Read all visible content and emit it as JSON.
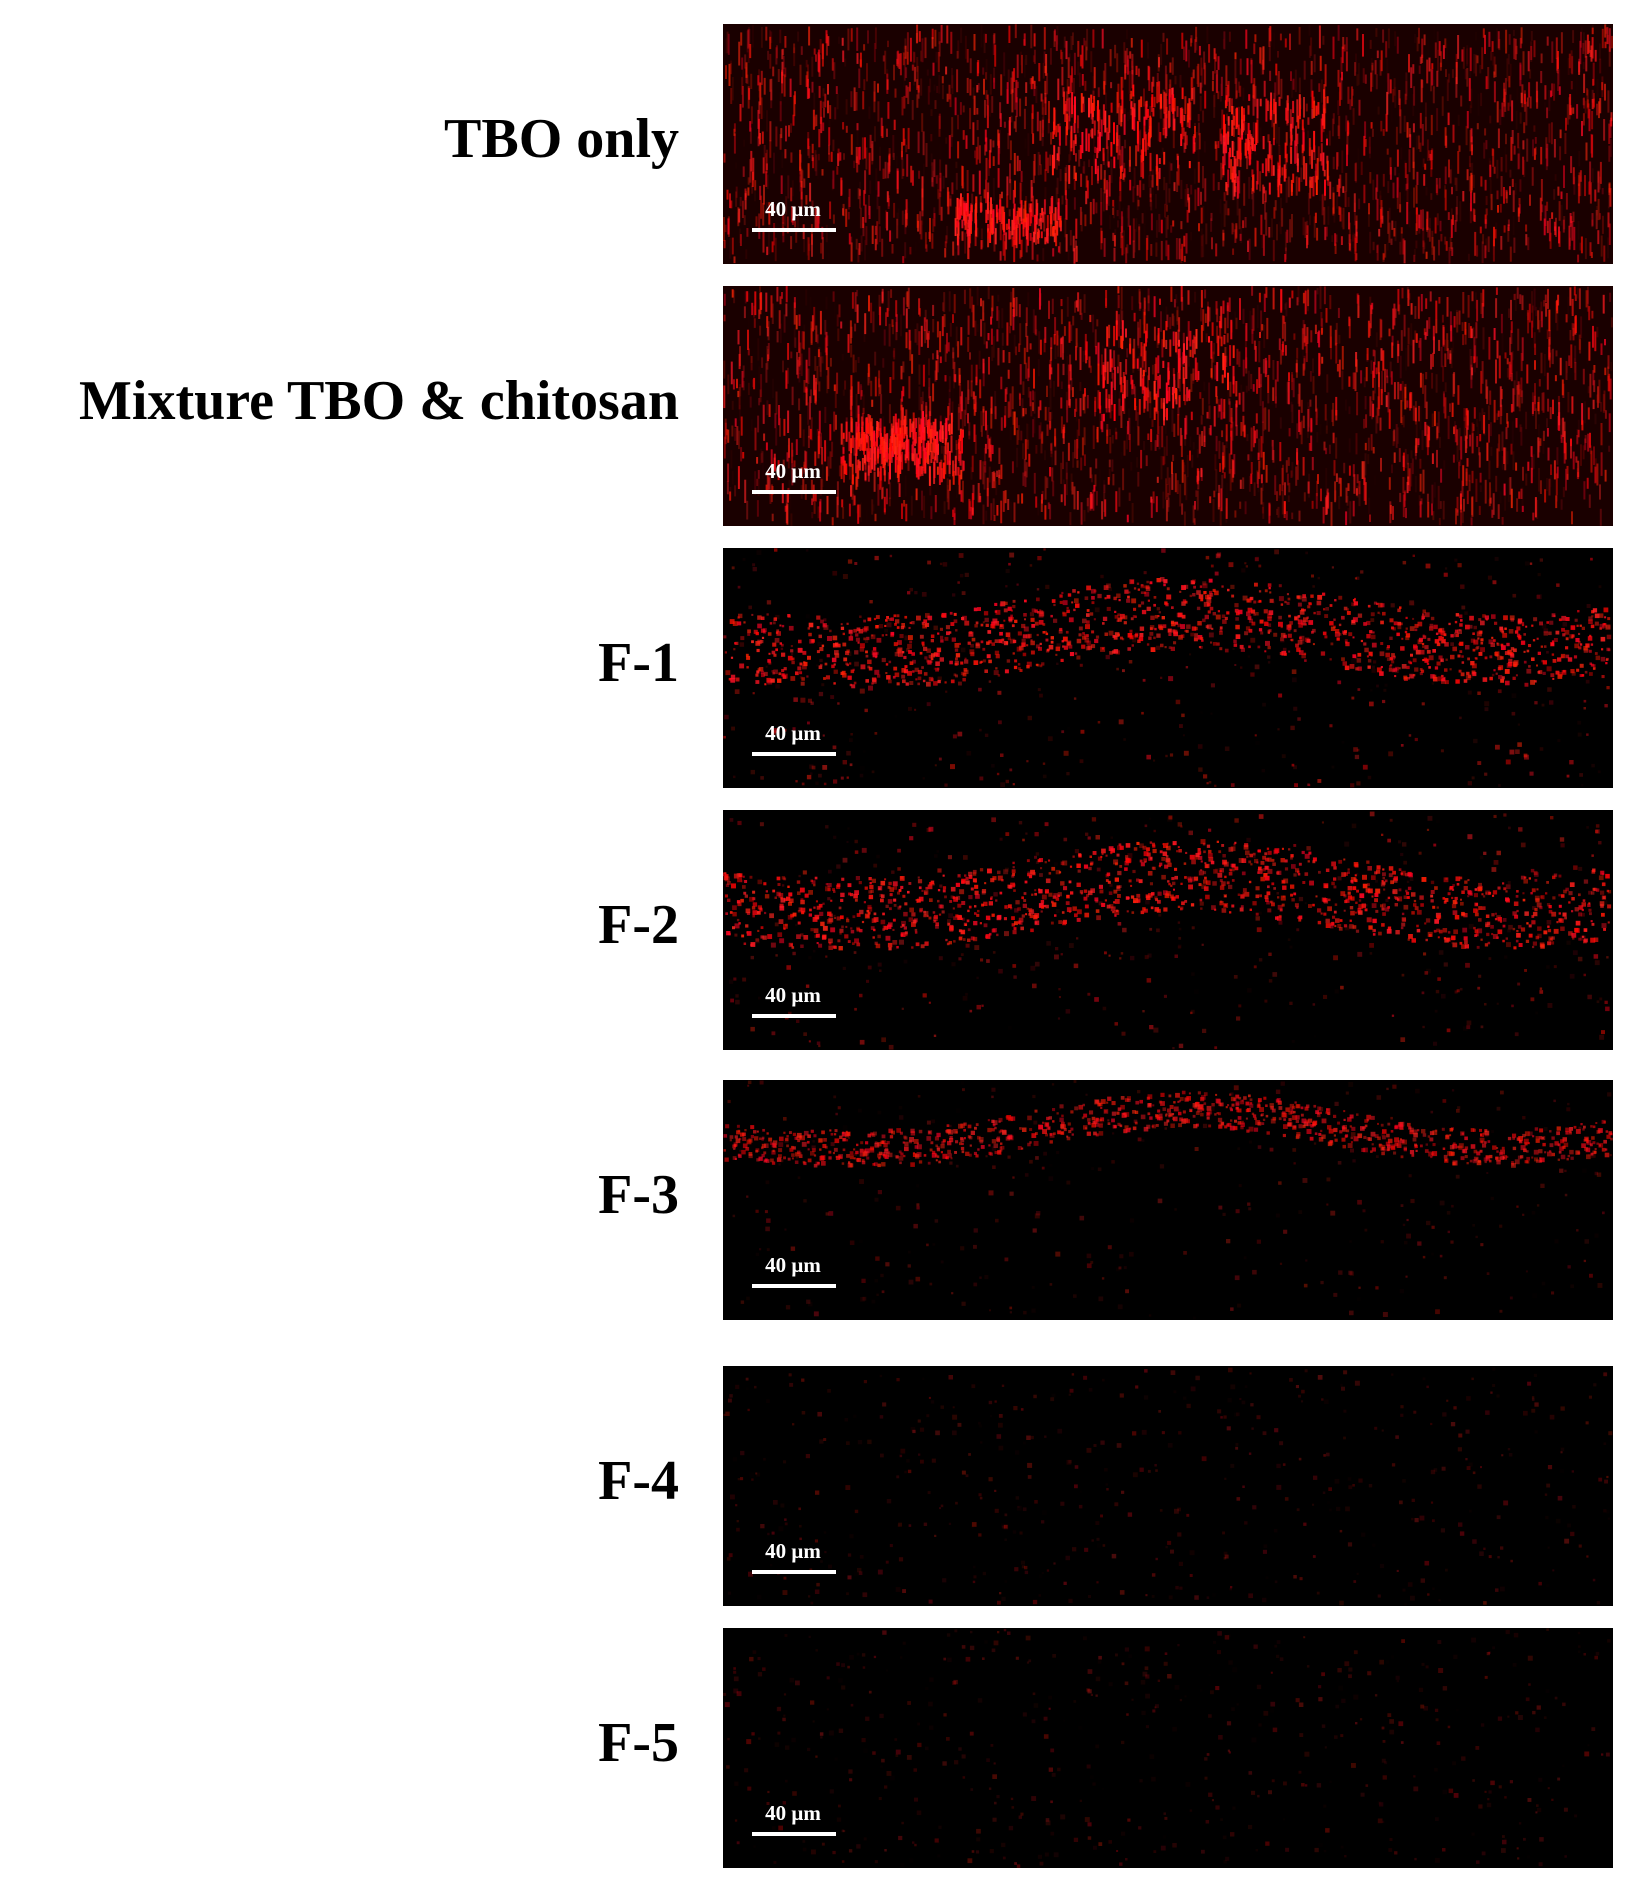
{
  "panels": [
    {
      "label": "TBO only",
      "scale_bar": "40 μm"
    },
    {
      "label": "Mixture TBO & chitosan",
      "scale_bar": "40 μm"
    },
    {
      "label": "F-1",
      "scale_bar": "40 μm"
    },
    {
      "label": "F-2",
      "scale_bar": "40 μm"
    },
    {
      "label": "F-3",
      "scale_bar": "40 μm"
    },
    {
      "label": "F-4",
      "scale_bar": "40 μm"
    },
    {
      "label": "F-5",
      "scale_bar": "40 μm"
    }
  ]
}
